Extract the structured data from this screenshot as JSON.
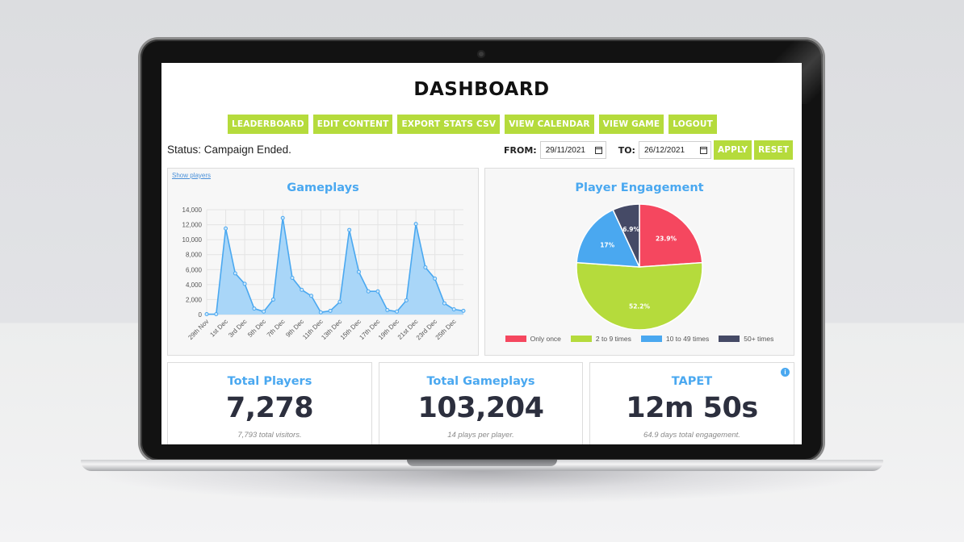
{
  "header": {
    "title": "DASHBOARD"
  },
  "nav": [
    {
      "label": "LEADERBOARD"
    },
    {
      "label": "EDIT CONTENT"
    },
    {
      "label": "EXPORT STATS CSV"
    },
    {
      "label": "VIEW CALENDAR"
    },
    {
      "label": "VIEW GAME"
    },
    {
      "label": "LOGOUT"
    }
  ],
  "status": {
    "text": "Status: Campaign Ended."
  },
  "filters": {
    "from_label": "FROM:",
    "from_value": "29/11/2021",
    "to_label": "TO:",
    "to_value": "26/12/2021",
    "apply_label": "APPLY",
    "reset_label": "RESET"
  },
  "colors": {
    "accent_green": "#b5db3c",
    "title_blue": "#4aa8f0",
    "stat_text": "#2c2f3e"
  },
  "gameplays_card": {
    "link": "Show players"
  },
  "engagement_card": {},
  "chart_data": [
    {
      "type": "area",
      "title": "Gameplays",
      "ylim": [
        0,
        14000
      ],
      "y_ticks": [
        "14,000",
        "12,000",
        "10,000",
        "8,000",
        "6,000",
        "4,000",
        "2,000",
        "0"
      ],
      "x_tick_labels": [
        "29th Nov",
        "1st Dec",
        "3rd Dec",
        "5th Dec",
        "7th Dec",
        "9th Dec",
        "11th Dec",
        "13th Dec",
        "15th Dec",
        "17th Dec",
        "19th Dec",
        "21st Dec",
        "23rd Dec",
        "25th Dec"
      ],
      "x": [
        "29 Nov",
        "30 Nov",
        "1 Dec",
        "2 Dec",
        "3 Dec",
        "4 Dec",
        "5 Dec",
        "6 Dec",
        "7 Dec",
        "8 Dec",
        "9 Dec",
        "10 Dec",
        "11 Dec",
        "12 Dec",
        "13 Dec",
        "14 Dec",
        "15 Dec",
        "16 Dec",
        "17 Dec",
        "18 Dec",
        "19 Dec",
        "20 Dec",
        "21 Dec",
        "22 Dec",
        "23 Dec",
        "24 Dec",
        "25 Dec",
        "26 Dec"
      ],
      "values": [
        50,
        50,
        11500,
        5500,
        4100,
        800,
        400,
        2000,
        12900,
        4900,
        3300,
        2500,
        300,
        500,
        1700,
        11300,
        5700,
        3100,
        3100,
        600,
        400,
        1900,
        12100,
        6300,
        4800,
        1500,
        700,
        500
      ],
      "grid": true,
      "color": "#4aa8f0",
      "fill": "#a9d6f8"
    },
    {
      "type": "pie",
      "title": "Player Engagement",
      "slices": [
        {
          "label": "Only once",
          "value": 23.9,
          "display": "23.9%",
          "color": "#f5475f"
        },
        {
          "label": "2 to 9 times",
          "value": 52.2,
          "display": "52.2%",
          "color": "#b5db3c"
        },
        {
          "label": "10 to 49 times",
          "value": 17,
          "display": "17%",
          "color": "#4aa8f0"
        },
        {
          "label": "50+ times",
          "value": 6.9,
          "display": "6.9%",
          "color": "#454a66"
        }
      ],
      "legend": "bottom"
    }
  ],
  "stats": [
    {
      "title": "Total Players",
      "value": "7,278",
      "sub": "7,793 total visitors."
    },
    {
      "title": "Total Gameplays",
      "value": "103,204",
      "sub": "14 plays per player."
    },
    {
      "title": "TAPET",
      "value": "12m 50s",
      "sub": "64.9 days total engagement.",
      "info_icon": "info-icon"
    }
  ]
}
